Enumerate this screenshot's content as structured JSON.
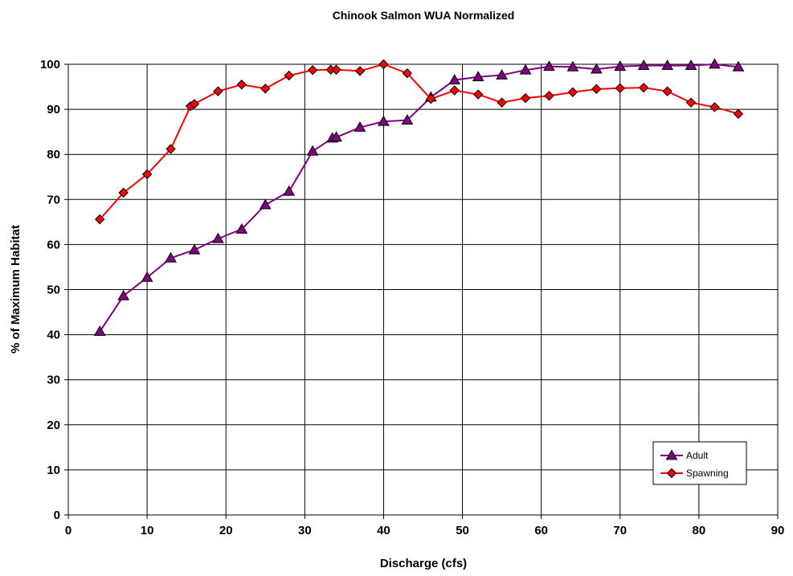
{
  "chart_data": {
    "type": "line",
    "title": "Chinook Salmon WUA Normalized",
    "xlabel": "Discharge (cfs)",
    "ylabel": "% of Maximum Habitat",
    "xlim": [
      0,
      90
    ],
    "ylim": [
      0,
      100
    ],
    "xticks": [
      0,
      10,
      20,
      30,
      40,
      50,
      60,
      70,
      80,
      90
    ],
    "yticks": [
      0,
      10,
      20,
      30,
      40,
      50,
      60,
      70,
      80,
      90,
      100
    ],
    "grid": true,
    "legend_position": "bottom-right",
    "series": [
      {
        "name": "Adult",
        "color": "#800080",
        "marker": "triangle",
        "marker_color": "#800080",
        "points": [
          [
            4,
            40.7
          ],
          [
            7,
            48.6
          ],
          [
            10,
            52.7
          ],
          [
            13,
            57.0
          ],
          [
            16,
            58.8
          ],
          [
            19,
            61.3
          ],
          [
            22,
            63.4
          ],
          [
            25,
            68.8
          ],
          [
            28,
            71.8
          ],
          [
            31,
            80.7
          ],
          [
            33.5,
            83.6
          ],
          [
            34,
            83.8
          ],
          [
            37,
            86.0
          ],
          [
            40,
            87.3
          ],
          [
            43,
            87.6
          ],
          [
            46,
            92.7
          ],
          [
            49,
            96.5
          ],
          [
            52,
            97.2
          ],
          [
            55,
            97.6
          ],
          [
            58,
            98.7
          ],
          [
            61,
            99.5
          ],
          [
            64,
            99.4
          ],
          [
            67,
            98.9
          ],
          [
            70,
            99.5
          ],
          [
            73,
            99.7
          ],
          [
            76,
            99.7
          ],
          [
            79,
            99.7
          ],
          [
            82,
            100.0
          ],
          [
            85,
            99.4
          ]
        ]
      },
      {
        "name": "Spawning",
        "color": "#ff0000",
        "marker": "diamond",
        "marker_color": "#ff0000",
        "points": [
          [
            4,
            65.6
          ],
          [
            7,
            71.5
          ],
          [
            10,
            75.6
          ],
          [
            13,
            81.2
          ],
          [
            15.5,
            90.7
          ],
          [
            16,
            91.2
          ],
          [
            19,
            94.0
          ],
          [
            22,
            95.5
          ],
          [
            25,
            94.6
          ],
          [
            28,
            97.5
          ],
          [
            31,
            98.7
          ],
          [
            33.3,
            98.8
          ],
          [
            34,
            98.8
          ],
          [
            37,
            98.5
          ],
          [
            40,
            100.0
          ],
          [
            43,
            98.0
          ],
          [
            46,
            92.3
          ],
          [
            49,
            94.2
          ],
          [
            52,
            93.3
          ],
          [
            55,
            91.5
          ],
          [
            58,
            92.5
          ],
          [
            61,
            93.0
          ],
          [
            64,
            93.8
          ],
          [
            67,
            94.5
          ],
          [
            70,
            94.7
          ],
          [
            73,
            94.8
          ],
          [
            76,
            94.0
          ],
          [
            79,
            91.5
          ],
          [
            82,
            90.5
          ],
          [
            85,
            89.0
          ]
        ]
      }
    ]
  }
}
